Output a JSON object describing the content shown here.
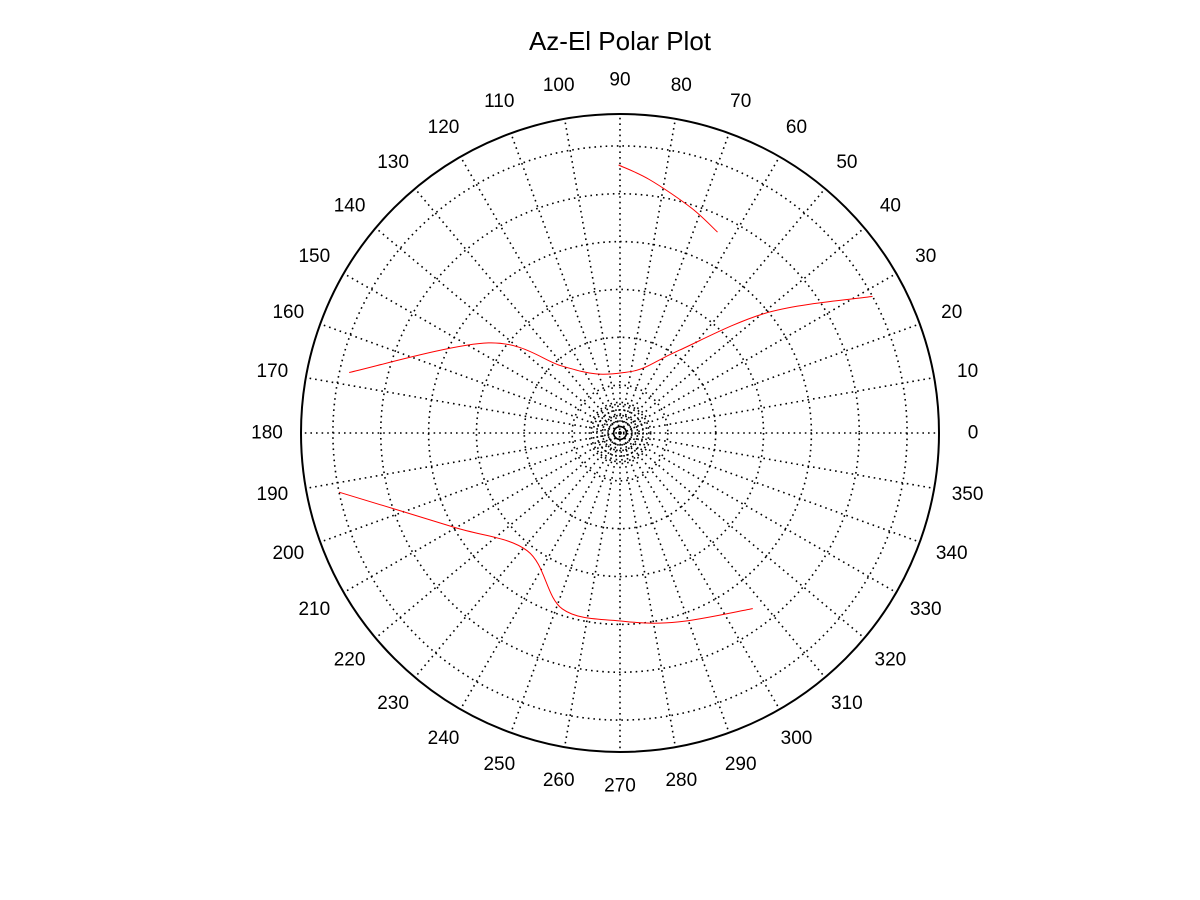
{
  "chart_data": {
    "type": "polar",
    "title": "Az-El Polar Plot",
    "angular_axis": {
      "ticks": [
        0,
        10,
        20,
        30,
        40,
        50,
        60,
        70,
        80,
        90,
        100,
        110,
        120,
        130,
        140,
        150,
        160,
        170,
        180,
        190,
        200,
        210,
        220,
        230,
        240,
        250,
        260,
        270,
        280,
        290,
        300,
        310,
        320,
        330,
        340,
        350
      ],
      "tick_labels": [
        "0",
        "10",
        "20",
        "30",
        "40",
        "50",
        "60",
        "70",
        "80",
        "90",
        "100",
        "110",
        "120",
        "130",
        "140",
        "150",
        "160",
        "170",
        "180",
        "190",
        "200",
        "210",
        "220",
        "230",
        "240",
        "250",
        "260",
        "270",
        "280",
        "290",
        "300",
        "310",
        "320",
        "330",
        "340",
        "350"
      ],
      "zero_direction": "right",
      "rotation": "counterclockwise"
    },
    "radial_axis": {
      "range": [
        0,
        1
      ],
      "grid_rings": [
        0.15,
        0.3,
        0.45,
        0.6,
        0.75,
        0.9
      ],
      "center_rings": [
        0.012,
        0.024,
        0.036,
        0.048,
        0.06,
        0.072,
        0.084,
        0.096
      ],
      "tick_labels_visible": false
    },
    "grid": true,
    "grid_style": "dotted",
    "legend": "none",
    "series": [
      {
        "color": "#ff0000",
        "segments": [
          [
            {
              "az": 90.3,
              "r": 0.84
            },
            {
              "az": 83.4,
              "r": 0.8
            },
            {
              "az": 72.4,
              "r": 0.74
            },
            {
              "az": 64.1,
              "r": 0.7
            }
          ],
          [
            {
              "az": 28.4,
              "r": 0.9
            },
            {
              "az": 39.1,
              "r": 0.6
            },
            {
              "az": 54.3,
              "r": 0.32
            },
            {
              "az": 69.3,
              "r": 0.22
            },
            {
              "az": 86.1,
              "r": 0.19
            },
            {
              "az": 112.1,
              "r": 0.2
            },
            {
              "az": 131.2,
              "r": 0.28
            },
            {
              "az": 145.6,
              "r": 0.5
            },
            {
              "az": 167.4,
              "r": 0.87
            }
          ],
          [
            {
              "az": 191.9,
              "r": 0.9
            },
            {
              "az": 209.4,
              "r": 0.6
            },
            {
              "az": 231.8,
              "r": 0.47
            },
            {
              "az": 251.8,
              "r": 0.58
            },
            {
              "az": 271.0,
              "r": 0.59
            },
            {
              "az": 287.2,
              "r": 0.62
            },
            {
              "az": 307.1,
              "r": 0.69
            }
          ]
        ]
      }
    ]
  }
}
